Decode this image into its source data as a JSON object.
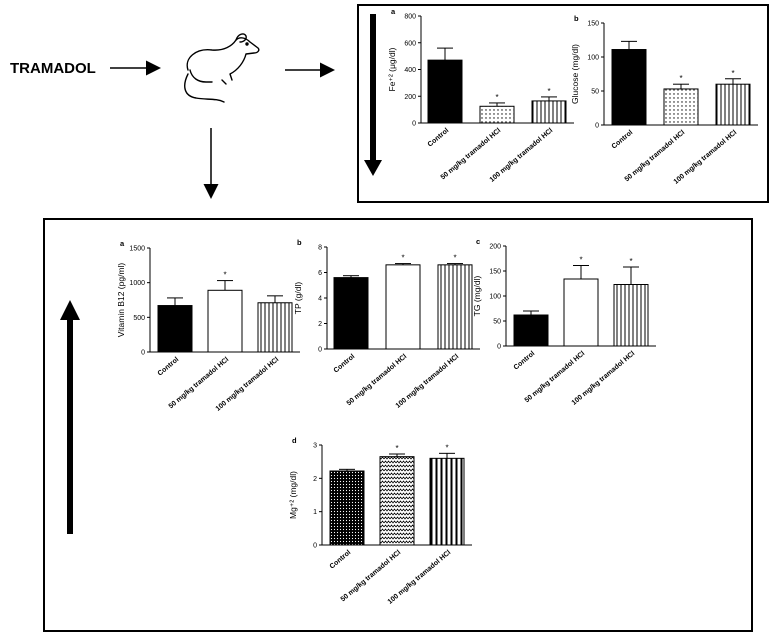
{
  "stimulus": {
    "label": "TRAMADOL",
    "icon": "rat-icon"
  },
  "chart_data": [
    {
      "id": "fe",
      "panel": "a",
      "type": "bar",
      "ylabel": "Fe⁺² (μg/dl)",
      "ylim": [
        0,
        800
      ],
      "yticks": [
        0,
        200,
        400,
        600,
        800
      ],
      "categories": [
        "Control",
        "50 mg/kg tramadol HCl",
        "100 mg/kg tramadol HCl"
      ],
      "values": [
        470,
        125,
        165
      ],
      "errors": [
        90,
        25,
        30
      ],
      "significant": [
        false,
        true,
        true
      ],
      "patterns": [
        "solid",
        "dots",
        "vlines"
      ]
    },
    {
      "id": "glucose",
      "panel": "b",
      "type": "bar",
      "ylabel": "Glucose (mg/dl)",
      "ylim": [
        0,
        150
      ],
      "yticks": [
        0,
        50,
        100,
        150
      ],
      "categories": [
        "Control",
        "50 mg/kg tramadol HCl",
        "100 mg/kg tramadol HCl"
      ],
      "values": [
        111,
        53,
        60
      ],
      "errors": [
        12,
        7,
        8
      ],
      "significant": [
        false,
        true,
        true
      ],
      "patterns": [
        "solid",
        "dots",
        "vlines"
      ]
    },
    {
      "id": "b12",
      "panel": "a",
      "type": "bar",
      "ylabel": "Vitamin B12 (pg/ml)",
      "ylim": [
        0,
        1500
      ],
      "yticks": [
        0,
        500,
        1000,
        1500
      ],
      "categories": [
        "Control",
        "50 mg/kg tramadol HCl",
        "100 mg/kg tramadol HCl"
      ],
      "values": [
        670,
        890,
        710
      ],
      "errors": [
        110,
        140,
        100
      ],
      "significant": [
        false,
        true,
        false
      ],
      "patterns": [
        "solid",
        "white",
        "vlines"
      ]
    },
    {
      "id": "tp",
      "panel": "b",
      "type": "bar",
      "ylabel": "TP (g/dl)",
      "ylim": [
        0,
        8
      ],
      "yticks": [
        0,
        2,
        4,
        6,
        8
      ],
      "categories": [
        "Control",
        "50 mg/kg tramadol HCl",
        "100 mg/kg tramadol HCl"
      ],
      "values": [
        5.6,
        6.6,
        6.6
      ],
      "errors": [
        0.15,
        0.1,
        0.1
      ],
      "significant": [
        false,
        true,
        true
      ],
      "patterns": [
        "solid",
        "white",
        "vlines"
      ]
    },
    {
      "id": "tg",
      "panel": "c",
      "type": "bar",
      "ylabel": "TG (mg/dl)",
      "ylim": [
        0,
        200
      ],
      "yticks": [
        0,
        50,
        100,
        150,
        200
      ],
      "categories": [
        "Control",
        "50 mg/kg tramadol HCl",
        "100 mg/kg tramadol HCl"
      ],
      "values": [
        62,
        134,
        123
      ],
      "errors": [
        8,
        27,
        35
      ],
      "significant": [
        false,
        true,
        true
      ],
      "patterns": [
        "solid",
        "white",
        "vlines"
      ]
    },
    {
      "id": "mg",
      "panel": "d",
      "type": "bar",
      "ylabel": "Mg⁺² (mg/dl)",
      "ylim": [
        0,
        3
      ],
      "yticks": [
        0,
        1,
        2,
        3
      ],
      "categories": [
        "Control",
        "50 mg/kg tramadol HCl",
        "100 mg/kg tramadol HCl"
      ],
      "values": [
        2.22,
        2.65,
        2.6
      ],
      "errors": [
        0.05,
        0.08,
        0.15
      ],
      "significant": [
        false,
        true,
        true
      ],
      "patterns": [
        "dense-dots",
        "zigzag",
        "vlines-thick"
      ]
    }
  ]
}
